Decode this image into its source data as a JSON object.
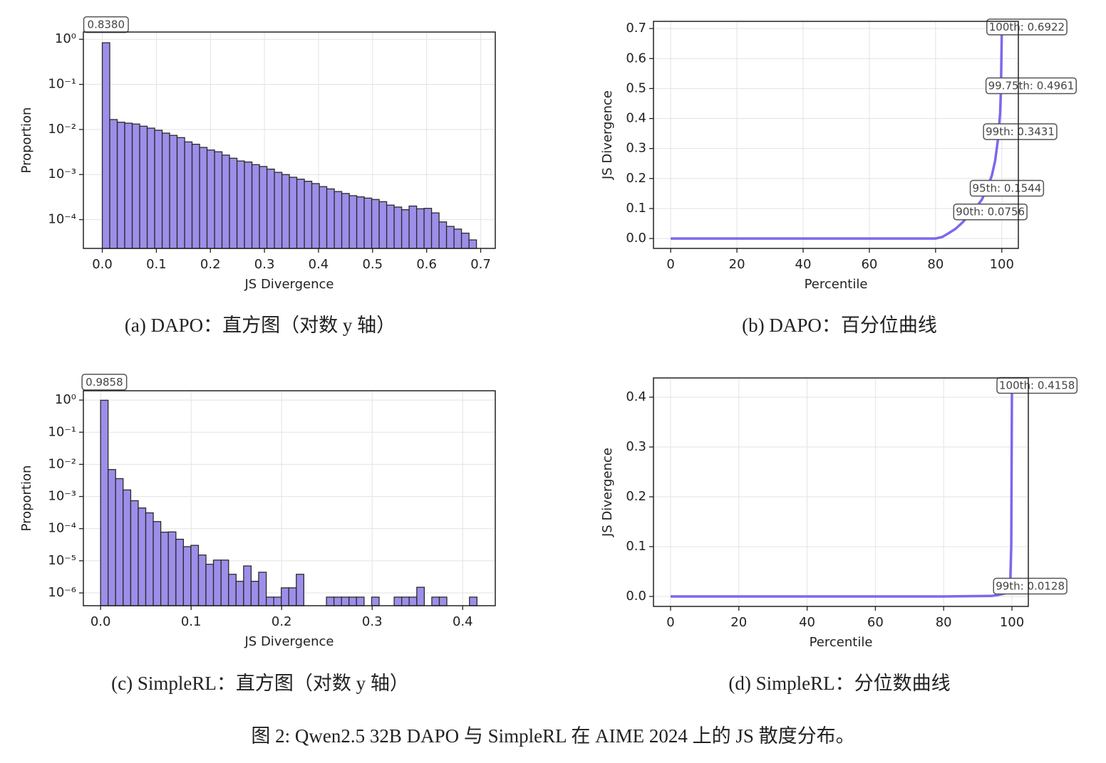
{
  "chart_data": [
    {
      "type": "histogram",
      "caption": "(a) DAPO：直方图（对数 y 轴）",
      "xlabel": "JS Divergence",
      "ylabel": "Proportion",
      "log_y": true,
      "grid": true,
      "color": "#9d8ee9",
      "edgecolor": "#2a2a2a",
      "annotation": "0.8380",
      "bins": [
        0,
        0.0138,
        0.0277,
        0.0415,
        0.0554,
        0.0692,
        0.0831,
        0.0969,
        0.1108,
        0.1246,
        0.1384,
        0.1523,
        0.1661,
        0.18,
        0.1938,
        0.2077,
        0.2215,
        0.2353,
        0.2492,
        0.263,
        0.2769,
        0.2907,
        0.3046,
        0.3184,
        0.3323,
        0.3461,
        0.3599,
        0.3738,
        0.3876,
        0.4015,
        0.4153,
        0.4292,
        0.443,
        0.4569,
        0.4707,
        0.4845,
        0.4984,
        0.5122,
        0.5261,
        0.5399,
        0.5538,
        0.5676,
        0.5815,
        0.5953,
        0.6091,
        0.623,
        0.6368,
        0.6507,
        0.6645,
        0.6784,
        0.6922
      ],
      "values": [
        0.838,
        0.0166,
        0.0145,
        0.0138,
        0.0132,
        0.0118,
        0.0107,
        0.0096,
        0.0083,
        0.0074,
        0.0066,
        0.0053,
        0.0047,
        0.004,
        0.0035,
        0.0032,
        0.0027,
        0.0023,
        0.002,
        0.0019,
        0.00166,
        0.00151,
        0.00132,
        0.00112,
        0.001,
        0.00087,
        0.00079,
        0.00071,
        0.00063,
        0.00054,
        0.00048,
        0.00042,
        0.00038,
        0.00034,
        0.00032,
        0.0003,
        0.00028,
        0.00025,
        0.00021,
        0.00019,
        0.000166,
        0.0002,
        0.000174,
        0.000178,
        0.000141,
        8.91e-05,
        7.08e-05,
        6.17e-05,
        5.01e-05,
        3.55e-05
      ],
      "xlim": [
        -0.035,
        0.727
      ],
      "xticks": [
        {
          "value": 0,
          "label": "0.0"
        },
        0.1,
        0.2,
        0.3,
        0.4,
        0.5,
        0.6,
        0.7
      ],
      "ylim": [
        2.3e-05,
        1.45
      ],
      "yticks": [
        {
          "value": 1,
          "label": "10⁰"
        },
        {
          "value": 0.1,
          "label": "10⁻¹"
        },
        {
          "value": 0.01,
          "label": "10⁻²"
        },
        {
          "value": 0.001,
          "label": "10⁻³"
        },
        {
          "value": 0.0001,
          "label": "10⁻⁴"
        }
      ]
    },
    {
      "type": "line",
      "caption": "(b) DAPO：百分位曲线",
      "xlabel": "Percentile",
      "ylabel": "JS Divergence",
      "grid": true,
      "color": "#7b68ee",
      "x": [
        0,
        20,
        40,
        60,
        80,
        82,
        84,
        86,
        88,
        90,
        92,
        94,
        95,
        96,
        97,
        98,
        99,
        99.5,
        99.75,
        100
      ],
      "values": [
        0,
        0,
        0,
        0,
        0,
        0.005,
        0.018,
        0.032,
        0.052,
        0.0756,
        0.1,
        0.13,
        0.1544,
        0.18,
        0.21,
        0.26,
        0.3431,
        0.42,
        0.4961,
        0.6922
      ],
      "annotations": [
        {
          "label": "90th: 0.0756",
          "x": 90,
          "y": 0.0756
        },
        {
          "label": "95th: 0.1544",
          "x": 95,
          "y": 0.1544
        },
        {
          "label": "99th: 0.3431",
          "x": 99,
          "y": 0.3431
        },
        {
          "label": "99.75th: 0.4961",
          "x": 99.75,
          "y": 0.4961
        },
        {
          "label": "100th: 0.6922",
          "x": 100,
          "y": 0.6922
        }
      ],
      "xlim": [
        -5.2,
        105
      ],
      "xticks": [
        0,
        20,
        40,
        60,
        80,
        100
      ],
      "ylim": [
        -0.033,
        0.724
      ],
      "yticks": [
        {
          "value": 0,
          "label": "0.0"
        },
        0.1,
        0.2,
        0.3,
        0.4,
        0.5,
        0.6,
        0.7
      ]
    },
    {
      "type": "histogram",
      "caption": "(c) SimpleRL：直方图（对数 y 轴）",
      "xlabel": "JS Divergence",
      "ylabel": "Proportion",
      "log_y": true,
      "grid": true,
      "color": "#9d8ee9",
      "edgecolor": "#2a2a2a",
      "annotation": "0.9858",
      "bins": [
        0,
        0.0083,
        0.0166,
        0.0249,
        0.0333,
        0.0416,
        0.0499,
        0.0582,
        0.0665,
        0.0748,
        0.0832,
        0.0915,
        0.0998,
        0.1081,
        0.1164,
        0.1247,
        0.1331,
        0.1414,
        0.1497,
        0.158,
        0.1663,
        0.1746,
        0.183,
        0.1913,
        0.1996,
        0.2079,
        0.2162,
        0.2245,
        0.2328,
        0.2412,
        0.2495,
        0.2578,
        0.2661,
        0.2744,
        0.2827,
        0.2911,
        0.2994,
        0.3077,
        0.316,
        0.3243,
        0.3326,
        0.3409,
        0.3493,
        0.3576,
        0.3659,
        0.3742,
        0.3825,
        0.3909,
        0.3992,
        0.4075,
        0.4158
      ],
      "values": [
        0.9858,
        0.0069,
        0.0036,
        0.0016,
        0.00074,
        0.00044,
        0.00031,
        0.000166,
        7.76e-05,
        7.9e-05,
        4.68e-05,
        2.75e-05,
        3.02e-05,
        1.51e-05,
        7.8e-06,
        1.05e-05,
        1.05e-05,
        3.8e-06,
        2.3e-06,
        6.9e-06,
        2.3e-06,
        4.4e-06,
        7.4e-07,
        7.4e-07,
        1.44e-06,
        1.44e-06,
        3.8e-06,
        0,
        0,
        0,
        7.4e-07,
        7.4e-07,
        7.4e-07,
        7.4e-07,
        7.4e-07,
        0,
        7.4e-07,
        0,
        0,
        7.4e-07,
        7.4e-07,
        7.4e-07,
        1.5e-06,
        0,
        7.4e-07,
        7.4e-07,
        0,
        0,
        0,
        7.4e-07
      ],
      "xlim": [
        -0.019,
        0.436
      ],
      "xticks": [
        {
          "value": 0,
          "label": "0.0"
        },
        0.1,
        0.2,
        0.3,
        0.4
      ],
      "ylim": [
        4e-07,
        1.95
      ],
      "yticks": [
        {
          "value": 1,
          "label": "10⁰"
        },
        {
          "value": 0.1,
          "label": "10⁻¹"
        },
        {
          "value": 0.01,
          "label": "10⁻²"
        },
        {
          "value": 0.001,
          "label": "10⁻³"
        },
        {
          "value": 0.0001,
          "label": "10⁻⁴"
        },
        {
          "value": 1e-05,
          "label": "10⁻⁵"
        },
        {
          "value": 1e-06,
          "label": "10⁻⁶"
        }
      ]
    },
    {
      "type": "line",
      "caption": "(d) SimpleRL：分位数曲线",
      "xlabel": "Percentile",
      "ylabel": "JS Divergence",
      "grid": true,
      "color": "#7b68ee",
      "x": [
        0,
        20,
        40,
        60,
        80,
        94,
        96,
        98,
        99,
        99.5,
        99.8,
        100
      ],
      "values": [
        0,
        0,
        0,
        0,
        0,
        0.001,
        0.003,
        0.006,
        0.0128,
        0.03,
        0.1,
        0.4158
      ],
      "annotations": [
        {
          "label": "99th: 0.0128",
          "x": 99,
          "y": 0.0128
        },
        {
          "label": "100th: 0.4158",
          "x": 100,
          "y": 0.4158
        }
      ],
      "xlim": [
        -5,
        104.8
      ],
      "xticks": [
        0,
        20,
        40,
        60,
        80,
        100
      ],
      "ylim": [
        -0.02,
        0.4386
      ],
      "yticks": [
        {
          "value": 0,
          "label": "0.0"
        },
        0.1,
        0.2,
        0.3,
        0.4
      ]
    }
  ],
  "figure_caption": "图 2: Qwen2.5 32B DAPO 与 SimpleRL 在 AIME 2024 上的 JS 散度分布。"
}
